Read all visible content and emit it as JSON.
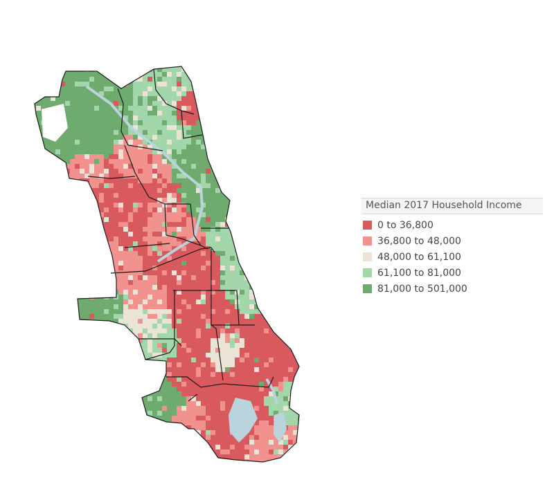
{
  "legend": {
    "title": "Median 2017 Household Income",
    "items": [
      {
        "label": "0 to 36,800",
        "color": "#d85a5e"
      },
      {
        "label": "36,800 to 48,000",
        "color": "#f2928e"
      },
      {
        "label": "48,000 to 61,100",
        "color": "#ece3d7"
      },
      {
        "label": "61,100 to 81,000",
        "color": "#a3d6ab"
      },
      {
        "label": "81,000 to 501,000",
        "color": "#6fab6f"
      }
    ]
  },
  "colors": {
    "boundary": "#1a1a1a",
    "water": "#b9d4dc"
  }
}
